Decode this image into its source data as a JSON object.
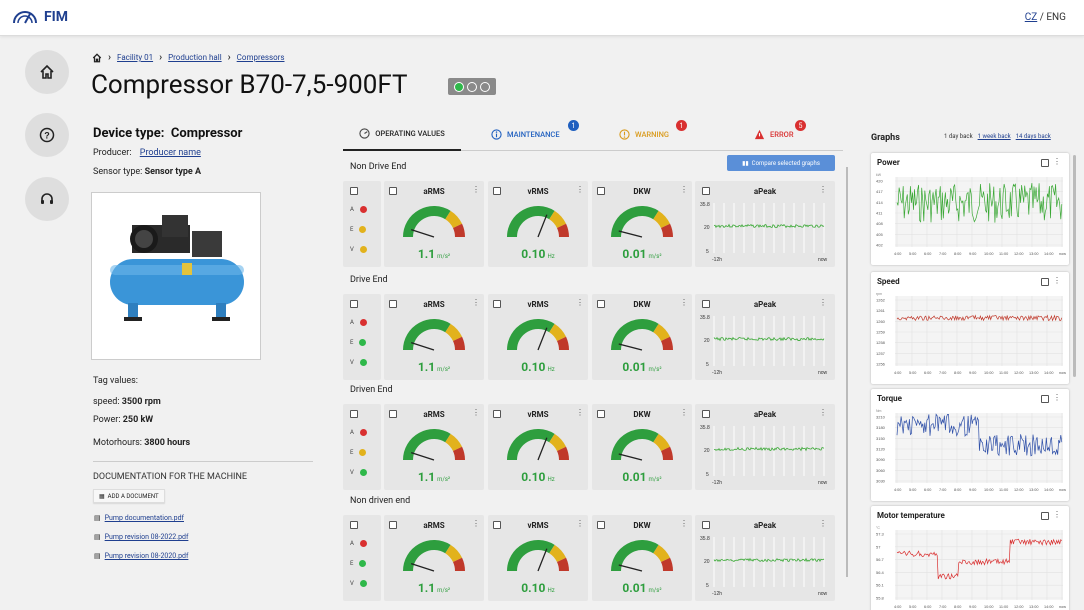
{
  "app": {
    "name": "FIM"
  },
  "lang": {
    "cz": "CZ",
    "sep": "/",
    "eng": "ENG"
  },
  "breadcrumb": [
    "Facility 01",
    "Production hall",
    "Compressors"
  ],
  "title": "Compressor B70-7,5-900FT",
  "device": {
    "type_label": "Device type:",
    "type_value": "Compressor",
    "producer_label": "Producer:",
    "producer_value": "Producer name",
    "sensor_label": "Sensor type:",
    "sensor_value": "Sensor type A"
  },
  "tags": {
    "title": "Tag values:",
    "speed_label": "speed:",
    "speed_value": "3500 rpm",
    "power_label": "Power:",
    "power_value": "250 kW",
    "motor_label": "Motorhours:",
    "motor_value": "3800 hours"
  },
  "docs": {
    "title": "DOCUMENTATION FOR THE MACHINE",
    "add_label": "ADD A DOCUMENT",
    "files": [
      "Pump documentation.pdf",
      "Pump revision 08-2022.pdf",
      "Pump revision 08-2020.pdf"
    ]
  },
  "tabs": [
    {
      "label": "OPERATING VALUES",
      "color": "#222222"
    },
    {
      "label": "MAINTENANCE",
      "color": "#1f5fbf",
      "badge": "1"
    },
    {
      "label": "WARNING",
      "color": "#d99a1a",
      "badge": "1"
    },
    {
      "label": "ERROR",
      "color": "#d93030",
      "badge": "5"
    }
  ],
  "compare_label": "Compare selected graphs",
  "led_labels": [
    "A",
    "E",
    "V"
  ],
  "sections": [
    {
      "title": "Non Drive End",
      "leds": [
        "#d93030",
        "#e2b21c",
        "#e2b21c"
      ]
    },
    {
      "title": "Drive End",
      "leds": [
        "#d93030",
        "#2fb84a",
        "#2fb84a"
      ]
    },
    {
      "title": "Driven End",
      "leds": [
        "#d93030",
        "#e2b21c",
        "#2fb84a"
      ]
    },
    {
      "title": "Non driven end",
      "leds": [
        "#d93030",
        "#2fb84a",
        "#2fb84a"
      ]
    }
  ],
  "metrics": [
    {
      "name": "aRMS",
      "value": "1.1",
      "unit": "m/s²",
      "needle": 0.1
    },
    {
      "name": "vRMS",
      "value": "0.10",
      "unit": "Hz",
      "needle": 0.62
    },
    {
      "name": "DKW",
      "value": "0.01",
      "unit": "m/s²",
      "needle": 0.08
    }
  ],
  "apeak": {
    "name": "aPeak",
    "ymax": "35.8",
    "ymid": "20",
    "ymin": "5",
    "xstart": "-12h",
    "xend": "now"
  },
  "graphs": {
    "title": "Graphs",
    "ranges": [
      "1 day back",
      "1 week back",
      "14 days back"
    ],
    "x_ticks": [
      "4:00",
      "5:00",
      "6:00",
      "7:00",
      "8:00",
      "9:00",
      "10:00",
      "11:00",
      "12:00",
      "13:00",
      "14:00",
      "now"
    ],
    "items": [
      {
        "name": "Power",
        "unit": "kW",
        "color": "#3aa835",
        "y_ticks": [
          "420",
          "417",
          "414",
          "411",
          "408",
          "405",
          "402"
        ]
      },
      {
        "name": "Speed",
        "unit": "rpm",
        "color": "#c0392b",
        "y_ticks": [
          "1262",
          "1261",
          "1260",
          "1259",
          "1258",
          "1257",
          "1256"
        ]
      },
      {
        "name": "Torque",
        "unit": "Nm",
        "color": "#2e4fa8",
        "y_ticks": [
          "3210",
          "3180",
          "3150",
          "3120",
          "3090",
          "3060",
          "3030"
        ]
      },
      {
        "name": "Motor temperature",
        "unit": "°C",
        "color": "#d93030",
        "y_ticks": [
          "57.3",
          "57",
          "56.7",
          "56.4",
          "56.1",
          "55.8"
        ]
      }
    ]
  }
}
